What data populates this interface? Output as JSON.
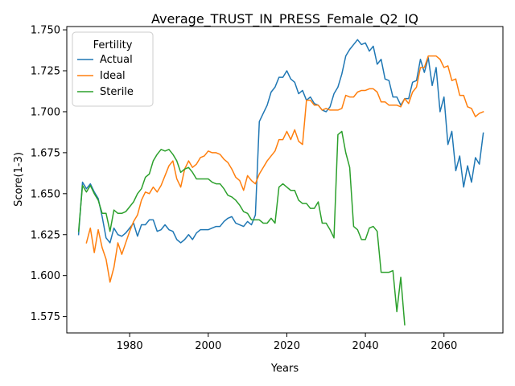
{
  "chart_data": {
    "type": "line",
    "title": "Average_TRUST_IN_PRESS_Female_Q2_IQ",
    "xlabel": "Years",
    "ylabel": "Score(1-3)",
    "xlim": [
      1964,
      2075
    ],
    "ylim": [
      1.565,
      1.752
    ],
    "x_ticks": [
      1980,
      2000,
      2020,
      2040,
      2060
    ],
    "y_ticks": [
      1.575,
      1.6,
      1.625,
      1.65,
      1.675,
      1.7,
      1.725,
      1.75
    ],
    "x_tick_labels": [
      "1980",
      "2000",
      "2020",
      "2040",
      "2060"
    ],
    "y_tick_labels": [
      "1.575",
      "1.600",
      "1.625",
      "1.650",
      "1.675",
      "1.700",
      "1.725",
      "1.750"
    ],
    "grid": false,
    "legend": {
      "title": "Fertility",
      "placement": "top-left",
      "entries": [
        "Actual",
        "Ideal",
        "Sterile"
      ]
    },
    "series": [
      {
        "name": "Actual",
        "color": "#1f77b4",
        "points": [
          [
            1967,
            1.625
          ],
          [
            1968,
            1.657
          ],
          [
            1969,
            1.653
          ],
          [
            1970,
            1.656
          ],
          [
            1971,
            1.651
          ],
          [
            1972,
            1.647
          ],
          [
            1973,
            1.636
          ],
          [
            1974,
            1.623
          ],
          [
            1975,
            1.62
          ],
          [
            1976,
            1.629
          ],
          [
            1977,
            1.625
          ],
          [
            1978,
            1.624
          ],
          [
            1979,
            1.626
          ],
          [
            1980,
            1.629
          ],
          [
            1981,
            1.632
          ],
          [
            1982,
            1.624
          ],
          [
            1983,
            1.631
          ],
          [
            1984,
            1.631
          ],
          [
            1985,
            1.634
          ],
          [
            1986,
            1.634
          ],
          [
            1987,
            1.627
          ],
          [
            1988,
            1.628
          ],
          [
            1989,
            1.631
          ],
          [
            1990,
            1.628
          ],
          [
            1991,
            1.627
          ],
          [
            1992,
            1.622
          ],
          [
            1993,
            1.62
          ],
          [
            1994,
            1.622
          ],
          [
            1995,
            1.625
          ],
          [
            1996,
            1.622
          ],
          [
            1997,
            1.626
          ],
          [
            1998,
            1.628
          ],
          [
            1999,
            1.628
          ],
          [
            2000,
            1.628
          ],
          [
            2001,
            1.629
          ],
          [
            2002,
            1.63
          ],
          [
            2003,
            1.63
          ],
          [
            2004,
            1.633
          ],
          [
            2005,
            1.635
          ],
          [
            2006,
            1.636
          ],
          [
            2007,
            1.632
          ],
          [
            2008,
            1.631
          ],
          [
            2009,
            1.63
          ],
          [
            2010,
            1.633
          ],
          [
            2011,
            1.631
          ],
          [
            2012,
            1.637
          ],
          [
            2013,
            1.694
          ],
          [
            2014,
            1.699
          ],
          [
            2015,
            1.704
          ],
          [
            2016,
            1.712
          ],
          [
            2017,
            1.715
          ],
          [
            2018,
            1.721
          ],
          [
            2019,
            1.721
          ],
          [
            2020,
            1.725
          ],
          [
            2021,
            1.72
          ],
          [
            2022,
            1.718
          ],
          [
            2023,
            1.711
          ],
          [
            2024,
            1.713
          ],
          [
            2025,
            1.707
          ],
          [
            2026,
            1.709
          ],
          [
            2027,
            1.705
          ],
          [
            2028,
            1.704
          ],
          [
            2029,
            1.701
          ],
          [
            2030,
            1.7
          ],
          [
            2031,
            1.703
          ],
          [
            2032,
            1.711
          ],
          [
            2033,
            1.715
          ],
          [
            2034,
            1.723
          ],
          [
            2035,
            1.734
          ],
          [
            2036,
            1.738
          ],
          [
            2037,
            1.741
          ],
          [
            2038,
            1.744
          ],
          [
            2039,
            1.741
          ],
          [
            2040,
            1.742
          ],
          [
            2041,
            1.737
          ],
          [
            2042,
            1.74
          ],
          [
            2043,
            1.729
          ],
          [
            2044,
            1.732
          ],
          [
            2045,
            1.72
          ],
          [
            2046,
            1.719
          ],
          [
            2047,
            1.709
          ],
          [
            2048,
            1.709
          ],
          [
            2049,
            1.704
          ],
          [
            2050,
            1.708
          ],
          [
            2051,
            1.708
          ],
          [
            2052,
            1.718
          ],
          [
            2053,
            1.719
          ],
          [
            2054,
            1.732
          ],
          [
            2055,
            1.724
          ],
          [
            2056,
            1.733
          ],
          [
            2057,
            1.716
          ],
          [
            2058,
            1.727
          ],
          [
            2059,
            1.7
          ],
          [
            2060,
            1.709
          ],
          [
            2061,
            1.68
          ],
          [
            2062,
            1.688
          ],
          [
            2063,
            1.664
          ],
          [
            2064,
            1.673
          ],
          [
            2065,
            1.654
          ],
          [
            2066,
            1.667
          ],
          [
            2067,
            1.657
          ],
          [
            2068,
            1.672
          ],
          [
            2069,
            1.668
          ],
          [
            2070,
            1.687
          ]
        ]
      },
      {
        "name": "Ideal",
        "color": "#ff7f0e",
        "points": [
          [
            1969,
            1.62
          ],
          [
            1970,
            1.629
          ],
          [
            1971,
            1.614
          ],
          [
            1972,
            1.628
          ],
          [
            1973,
            1.617
          ],
          [
            1974,
            1.61
          ],
          [
            1975,
            1.596
          ],
          [
            1976,
            1.605
          ],
          [
            1977,
            1.62
          ],
          [
            1978,
            1.613
          ],
          [
            1979,
            1.62
          ],
          [
            1980,
            1.627
          ],
          [
            1981,
            1.633
          ],
          [
            1982,
            1.637
          ],
          [
            1983,
            1.646
          ],
          [
            1984,
            1.651
          ],
          [
            1985,
            1.65
          ],
          [
            1986,
            1.654
          ],
          [
            1987,
            1.651
          ],
          [
            1988,
            1.655
          ],
          [
            1989,
            1.661
          ],
          [
            1990,
            1.667
          ],
          [
            1991,
            1.67
          ],
          [
            1992,
            1.659
          ],
          [
            1993,
            1.654
          ],
          [
            1994,
            1.665
          ],
          [
            1995,
            1.67
          ],
          [
            1996,
            1.666
          ],
          [
            1997,
            1.668
          ],
          [
            1998,
            1.672
          ],
          [
            1999,
            1.673
          ],
          [
            2000,
            1.676
          ],
          [
            2001,
            1.675
          ],
          [
            2002,
            1.675
          ],
          [
            2003,
            1.674
          ],
          [
            2004,
            1.671
          ],
          [
            2005,
            1.669
          ],
          [
            2006,
            1.665
          ],
          [
            2007,
            1.66
          ],
          [
            2008,
            1.658
          ],
          [
            2009,
            1.652
          ],
          [
            2010,
            1.661
          ],
          [
            2011,
            1.658
          ],
          [
            2012,
            1.656
          ],
          [
            2013,
            1.662
          ],
          [
            2014,
            1.666
          ],
          [
            2015,
            1.67
          ],
          [
            2016,
            1.673
          ],
          [
            2017,
            1.676
          ],
          [
            2018,
            1.683
          ],
          [
            2019,
            1.683
          ],
          [
            2020,
            1.688
          ],
          [
            2021,
            1.683
          ],
          [
            2022,
            1.689
          ],
          [
            2023,
            1.682
          ],
          [
            2024,
            1.68
          ],
          [
            2025,
            1.707
          ],
          [
            2026,
            1.707
          ],
          [
            2027,
            1.704
          ],
          [
            2028,
            1.704
          ],
          [
            2029,
            1.701
          ],
          [
            2030,
            1.702
          ],
          [
            2031,
            1.701
          ],
          [
            2032,
            1.701
          ],
          [
            2033,
            1.701
          ],
          [
            2034,
            1.702
          ],
          [
            2035,
            1.71
          ],
          [
            2036,
            1.709
          ],
          [
            2037,
            1.709
          ],
          [
            2038,
            1.712
          ],
          [
            2039,
            1.713
          ],
          [
            2040,
            1.713
          ],
          [
            2041,
            1.714
          ],
          [
            2042,
            1.714
          ],
          [
            2043,
            1.712
          ],
          [
            2044,
            1.706
          ],
          [
            2045,
            1.706
          ],
          [
            2046,
            1.704
          ],
          [
            2047,
            1.704
          ],
          [
            2048,
            1.704
          ],
          [
            2049,
            1.703
          ],
          [
            2050,
            1.708
          ],
          [
            2051,
            1.705
          ],
          [
            2052,
            1.712
          ],
          [
            2053,
            1.715
          ],
          [
            2054,
            1.727
          ],
          [
            2055,
            1.727
          ],
          [
            2056,
            1.734
          ],
          [
            2057,
            1.734
          ],
          [
            2058,
            1.734
          ],
          [
            2059,
            1.732
          ],
          [
            2060,
            1.727
          ],
          [
            2061,
            1.728
          ],
          [
            2062,
            1.719
          ],
          [
            2063,
            1.72
          ],
          [
            2064,
            1.71
          ],
          [
            2065,
            1.71
          ],
          [
            2066,
            1.703
          ],
          [
            2067,
            1.702
          ],
          [
            2068,
            1.697
          ],
          [
            2069,
            1.699
          ],
          [
            2070,
            1.7
          ]
        ]
      },
      {
        "name": "Sterile",
        "color": "#2ca02c",
        "points": [
          [
            1967,
            1.627
          ],
          [
            1968,
            1.655
          ],
          [
            1969,
            1.651
          ],
          [
            1970,
            1.655
          ],
          [
            1971,
            1.65
          ],
          [
            1972,
            1.646
          ],
          [
            1973,
            1.638
          ],
          [
            1974,
            1.638
          ],
          [
            1975,
            1.627
          ],
          [
            1976,
            1.64
          ],
          [
            1977,
            1.638
          ],
          [
            1978,
            1.638
          ],
          [
            1979,
            1.639
          ],
          [
            1980,
            1.642
          ],
          [
            1981,
            1.645
          ],
          [
            1982,
            1.65
          ],
          [
            1983,
            1.653
          ],
          [
            1984,
            1.66
          ],
          [
            1985,
            1.662
          ],
          [
            1986,
            1.67
          ],
          [
            1987,
            1.674
          ],
          [
            1988,
            1.677
          ],
          [
            1989,
            1.676
          ],
          [
            1990,
            1.677
          ],
          [
            1991,
            1.674
          ],
          [
            1992,
            1.67
          ],
          [
            1993,
            1.663
          ],
          [
            1994,
            1.665
          ],
          [
            1995,
            1.666
          ],
          [
            1996,
            1.663
          ],
          [
            1997,
            1.659
          ],
          [
            1998,
            1.659
          ],
          [
            1999,
            1.659
          ],
          [
            2000,
            1.659
          ],
          [
            2001,
            1.657
          ],
          [
            2002,
            1.656
          ],
          [
            2003,
            1.656
          ],
          [
            2004,
            1.653
          ],
          [
            2005,
            1.649
          ],
          [
            2006,
            1.648
          ],
          [
            2007,
            1.646
          ],
          [
            2008,
            1.643
          ],
          [
            2009,
            1.639
          ],
          [
            2010,
            1.638
          ],
          [
            2011,
            1.634
          ],
          [
            2012,
            1.634
          ],
          [
            2013,
            1.634
          ],
          [
            2014,
            1.632
          ],
          [
            2015,
            1.632
          ],
          [
            2016,
            1.635
          ],
          [
            2017,
            1.632
          ],
          [
            2018,
            1.654
          ],
          [
            2019,
            1.656
          ],
          [
            2020,
            1.654
          ],
          [
            2021,
            1.652
          ],
          [
            2022,
            1.652
          ],
          [
            2023,
            1.646
          ],
          [
            2024,
            1.644
          ],
          [
            2025,
            1.644
          ],
          [
            2026,
            1.641
          ],
          [
            2027,
            1.641
          ],
          [
            2028,
            1.645
          ],
          [
            2029,
            1.632
          ],
          [
            2030,
            1.632
          ],
          [
            2031,
            1.628
          ],
          [
            2032,
            1.623
          ],
          [
            2033,
            1.686
          ],
          [
            2034,
            1.688
          ],
          [
            2035,
            1.675
          ],
          [
            2036,
            1.666
          ],
          [
            2037,
            1.63
          ],
          [
            2038,
            1.628
          ],
          [
            2039,
            1.622
          ],
          [
            2040,
            1.622
          ],
          [
            2041,
            1.629
          ],
          [
            2042,
            1.63
          ],
          [
            2043,
            1.627
          ],
          [
            2044,
            1.602
          ],
          [
            2045,
            1.602
          ],
          [
            2046,
            1.602
          ],
          [
            2047,
            1.603
          ],
          [
            2048,
            1.578
          ],
          [
            2049,
            1.599
          ],
          [
            2050,
            1.57
          ]
        ]
      }
    ]
  }
}
